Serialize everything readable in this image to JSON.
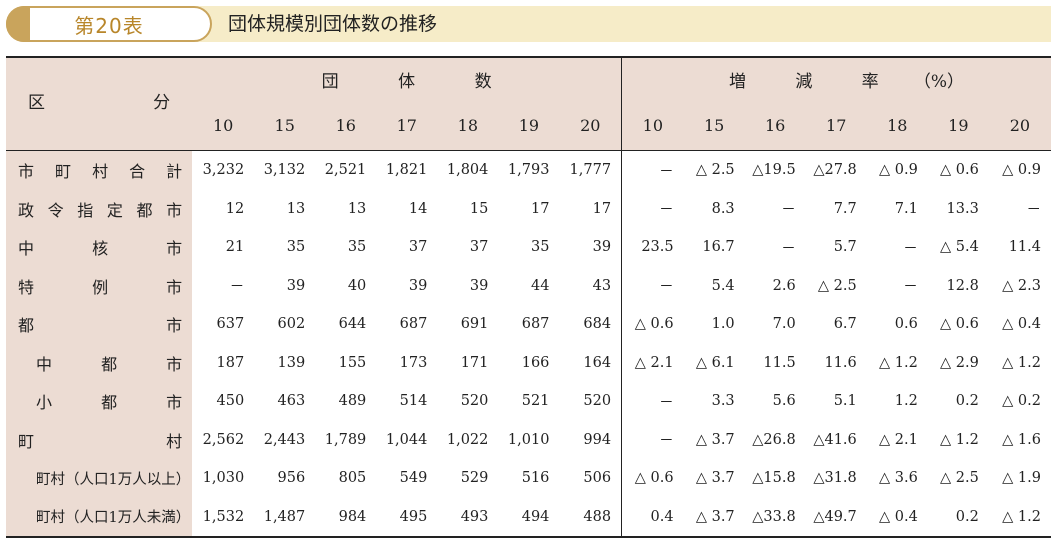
{
  "header": {
    "table_number": "第20表",
    "title": "団体規模別団体数の推移"
  },
  "table": {
    "stub_header": [
      "区",
      "分"
    ],
    "group_count_label": [
      "団",
      "体",
      "数"
    ],
    "group_rate_label": [
      "増",
      "減",
      "率",
      "（%）"
    ],
    "count_years": [
      "10",
      "15",
      "16",
      "17",
      "18",
      "19",
      "20"
    ],
    "rate_years": [
      "10",
      "15",
      "16",
      "17",
      "18",
      "19",
      "20"
    ],
    "rows": [
      {
        "label_chars": [
          "市",
          "町",
          "村",
          "合",
          "計"
        ],
        "counts": [
          "3,232",
          "3,132",
          "2,521",
          "1,821",
          "1,804",
          "1,793",
          "1,777"
        ],
        "rates": [
          "－",
          "△ 2.5",
          "△19.5",
          "△27.8",
          "△ 0.9",
          "△ 0.6",
          "△ 0.9"
        ]
      },
      {
        "label_chars": [
          "政",
          "令",
          "指",
          "定",
          "都",
          "市"
        ],
        "counts": [
          "12",
          "13",
          "13",
          "14",
          "15",
          "17",
          "17"
        ],
        "rates": [
          "－",
          "8.3",
          "－",
          "7.7",
          "7.1",
          "13.3",
          "－"
        ]
      },
      {
        "label_chars": [
          "中",
          "核",
          "市"
        ],
        "counts": [
          "21",
          "35",
          "35",
          "37",
          "37",
          "35",
          "39"
        ],
        "rates": [
          "23.5",
          "16.7",
          "－",
          "5.7",
          "－",
          "△ 5.4",
          "11.4"
        ]
      },
      {
        "label_chars": [
          "特",
          "例",
          "市"
        ],
        "counts": [
          "－",
          "39",
          "40",
          "39",
          "39",
          "44",
          "43"
        ],
        "rates": [
          "－",
          "5.4",
          "2.6",
          "△ 2.5",
          "－",
          "12.8",
          "△ 2.3"
        ]
      },
      {
        "label_chars": [
          "都",
          "市"
        ],
        "counts": [
          "637",
          "602",
          "644",
          "687",
          "691",
          "687",
          "684"
        ],
        "rates": [
          "△ 0.6",
          "1.0",
          "7.0",
          "6.7",
          "0.6",
          "△ 0.6",
          "△ 0.4"
        ]
      },
      {
        "label_chars": [
          "中",
          "都",
          "市"
        ],
        "sub": true,
        "counts": [
          "187",
          "139",
          "155",
          "173",
          "171",
          "166",
          "164"
        ],
        "rates": [
          "△ 2.1",
          "△ 6.1",
          "11.5",
          "11.6",
          "△ 1.2",
          "△ 2.9",
          "△ 1.2"
        ]
      },
      {
        "label_chars": [
          "小",
          "都",
          "市"
        ],
        "sub": true,
        "counts": [
          "450",
          "463",
          "489",
          "514",
          "520",
          "521",
          "520"
        ],
        "rates": [
          "－",
          "3.3",
          "5.6",
          "5.1",
          "1.2",
          "0.2",
          "△ 0.2"
        ]
      },
      {
        "label_chars": [
          "町",
          "村"
        ],
        "counts": [
          "2,562",
          "2,443",
          "1,789",
          "1,044",
          "1,022",
          "1,010",
          "994"
        ],
        "rates": [
          "－",
          "△ 3.7",
          "△26.8",
          "△41.6",
          "△ 2.1",
          "△ 1.2",
          "△ 1.6"
        ]
      },
      {
        "label": "町村（人口1万人以上）",
        "sub": true,
        "counts": [
          "1,030",
          "956",
          "805",
          "549",
          "529",
          "516",
          "506"
        ],
        "rates": [
          "△ 0.6",
          "△ 3.7",
          "△15.8",
          "△31.8",
          "△ 3.6",
          "△ 2.5",
          "△ 1.9"
        ]
      },
      {
        "label": "町村（人口1万人未満）",
        "sub": true,
        "counts": [
          "1,532",
          "1,487",
          "984",
          "495",
          "493",
          "494",
          "488"
        ],
        "rates": [
          "0.4",
          "△ 3.7",
          "△33.8",
          "△49.7",
          "△ 0.4",
          "0.2",
          "△ 1.2"
        ]
      }
    ]
  }
}
